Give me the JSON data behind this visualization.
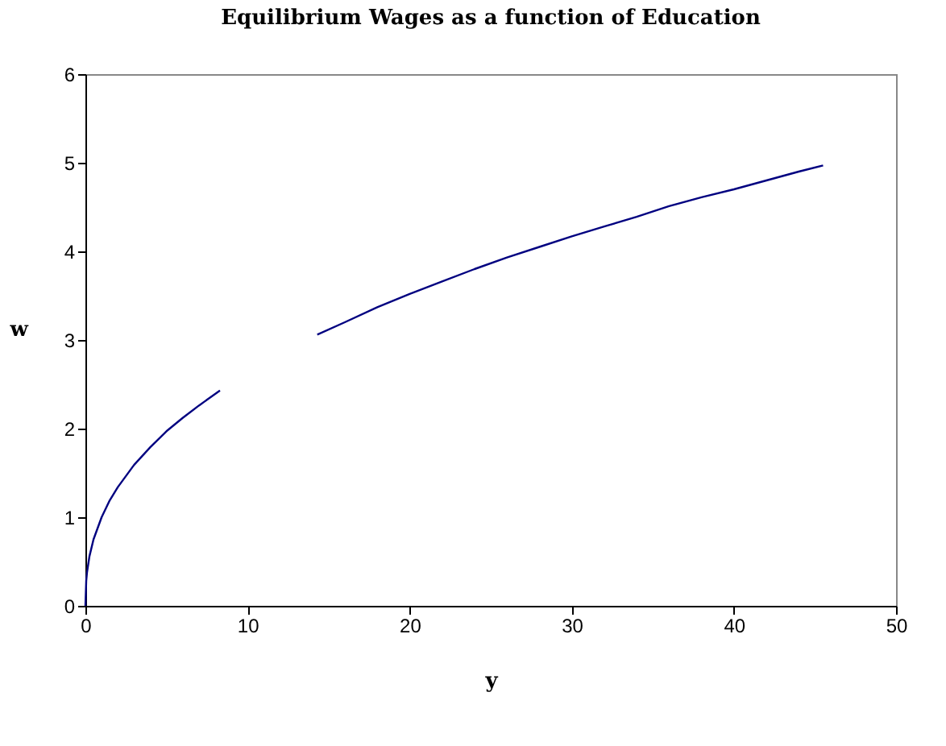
{
  "chart_data": {
    "type": "line",
    "title": "Equilibrium Wages as a function of Education",
    "xlabel": "y",
    "ylabel": "w",
    "x": [
      0,
      0.05,
      0.1,
      0.25,
      0.5,
      1,
      1.5,
      2,
      3,
      4,
      5,
      6,
      7,
      8.3,
      11,
      14.3,
      16,
      18,
      20,
      22,
      24,
      26,
      28,
      30,
      32,
      34,
      36,
      38,
      40,
      42,
      44,
      45.5
    ],
    "series": [
      {
        "color": "#000080",
        "values": [
          0,
          0.28,
          0.38,
          0.56,
          0.75,
          1,
          1.19,
          1.34,
          1.59,
          1.79,
          1.97,
          2.12,
          2.26,
          2.43,
          null,
          3.06,
          3.2,
          3.37,
          3.52,
          3.66,
          3.8,
          3.93,
          4.05,
          4.17,
          4.28,
          4.39,
          4.51,
          4.61,
          4.7,
          4.8,
          4.9,
          4.97
        ]
      }
    ],
    "xlim": [
      0,
      50
    ],
    "xticks": [
      0,
      10,
      20,
      30,
      40,
      50
    ],
    "ylim": [
      0,
      6
    ],
    "yticks": [
      0,
      1,
      2,
      3,
      4,
      5,
      6
    ],
    "grid": false,
    "legend": false,
    "marker": "none",
    "line_style": "solid"
  }
}
